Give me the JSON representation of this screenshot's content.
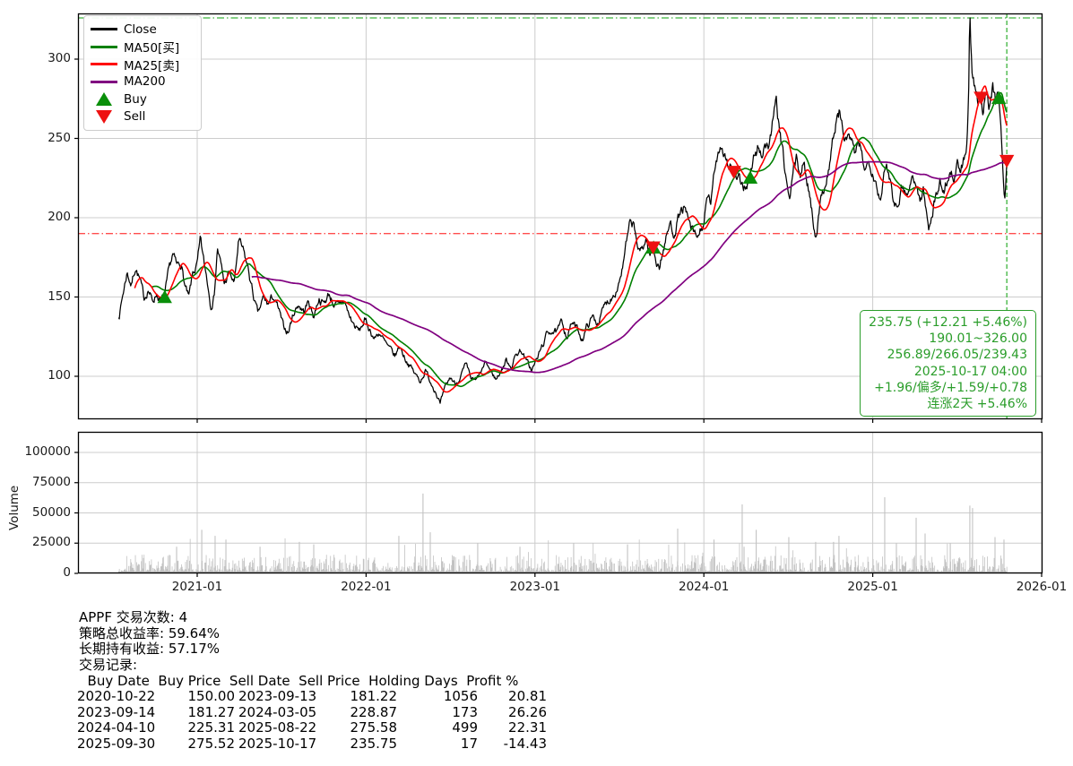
{
  "chart": {
    "legend": {
      "items": [
        {
          "label": "Close",
          "color": "#000000",
          "type": "line"
        },
        {
          "label": "MA50[买]",
          "color": "#008000",
          "type": "line"
        },
        {
          "label": "MA25[卖]",
          "color": "#ff0000",
          "type": "line"
        },
        {
          "label": "MA200",
          "color": "#800080",
          "type": "line"
        },
        {
          "label": "Buy",
          "color": "#0a8f0a",
          "type": "tri-up"
        },
        {
          "label": "Sell",
          "color": "#ee1111",
          "type": "tri-down"
        }
      ]
    },
    "y_ticks": [
      100,
      150,
      200,
      250,
      300
    ],
    "x_ticks": [
      "2021-01",
      "2022-01",
      "2023-01",
      "2024-01",
      "2025-01",
      "2026-01"
    ],
    "volume_y_ticks": [
      0,
      25000,
      50000,
      75000,
      100000
    ],
    "volume_axis_label": "Volume",
    "annotation": {
      "color": "#2a9d2a",
      "lines": [
        "235.75 (+12.21 +5.46%)",
        "190.01~326.00",
        "256.89/266.05/239.43",
        "2025-10-17 04:00",
        "+1.96/偏多/+1.59/+0.78",
        "连涨2天 +5.46%"
      ]
    }
  },
  "chart_data": {
    "type": "line",
    "title": "",
    "xlabel": "",
    "ylabel": "",
    "x_range": [
      "2020-07-14",
      "2025-10-17"
    ],
    "ylim": [
      73,
      329
    ],
    "volume_ylim": [
      0,
      117000
    ],
    "grid": true,
    "legend_position": "upper-left",
    "ref_lines": {
      "high": {
        "value": 326.0,
        "style": "dashdot",
        "color": "#3cb43c"
      },
      "low": {
        "value": 190.01,
        "style": "dashdot",
        "color": "#ff4d4d"
      },
      "last_date": {
        "value": "2025-10-17",
        "style": "dashed",
        "color": "#3cb43c"
      }
    },
    "series": [
      {
        "name": "Close",
        "color": "#000000",
        "width": 1.25
      },
      {
        "name": "MA50[买]",
        "color": "#008000",
        "width": 1.6,
        "window": 50
      },
      {
        "name": "MA25[卖]",
        "color": "#ff0000",
        "width": 1.6,
        "window": 25
      },
      {
        "name": "MA200",
        "color": "#800080",
        "width": 1.7,
        "window": 200
      }
    ],
    "close_anchors": [
      [
        2020.535,
        137
      ],
      [
        2020.56,
        152
      ],
      [
        2020.585,
        166
      ],
      [
        2020.61,
        158
      ],
      [
        2020.635,
        170
      ],
      [
        2020.66,
        161
      ],
      [
        2020.685,
        148
      ],
      [
        2020.71,
        156
      ],
      [
        2020.735,
        147
      ],
      [
        2020.76,
        153
      ],
      [
        2020.785,
        147
      ],
      [
        2020.808,
        150
      ],
      [
        2020.83,
        163
      ],
      [
        2020.855,
        176
      ],
      [
        2020.88,
        168
      ],
      [
        2020.905,
        172
      ],
      [
        2020.925,
        158
      ],
      [
        2020.95,
        148
      ],
      [
        2020.975,
        164
      ],
      [
        2021.0,
        170
      ],
      [
        2021.02,
        184
      ],
      [
        2021.04,
        170
      ],
      [
        2021.06,
        160
      ],
      [
        2021.08,
        146
      ],
      [
        2021.1,
        152
      ],
      [
        2021.12,
        182
      ],
      [
        2021.14,
        170
      ],
      [
        2021.16,
        158
      ],
      [
        2021.19,
        165
      ],
      [
        2021.22,
        158
      ],
      [
        2021.245,
        185
      ],
      [
        2021.27,
        178
      ],
      [
        2021.3,
        168
      ],
      [
        2021.33,
        152
      ],
      [
        2021.36,
        138
      ],
      [
        2021.39,
        148
      ],
      [
        2021.42,
        145
      ],
      [
        2021.45,
        150
      ],
      [
        2021.48,
        142
      ],
      [
        2021.51,
        130
      ],
      [
        2021.54,
        128
      ],
      [
        2021.57,
        140
      ],
      [
        2021.6,
        146
      ],
      [
        2021.63,
        141
      ],
      [
        2021.66,
        147
      ],
      [
        2021.69,
        138
      ],
      [
        2021.72,
        150
      ],
      [
        2021.75,
        146
      ],
      [
        2021.78,
        152
      ],
      [
        2021.81,
        146
      ],
      [
        2021.84,
        143
      ],
      [
        2021.87,
        148
      ],
      [
        2021.9,
        138
      ],
      [
        2021.93,
        132
      ],
      [
        2021.96,
        128
      ],
      [
        2021.99,
        135
      ],
      [
        2022.02,
        130
      ],
      [
        2022.05,
        124
      ],
      [
        2022.08,
        128
      ],
      [
        2022.11,
        121
      ],
      [
        2022.14,
        116
      ],
      [
        2022.17,
        112
      ],
      [
        2022.2,
        119
      ],
      [
        2022.23,
        112
      ],
      [
        2022.26,
        107
      ],
      [
        2022.29,
        101
      ],
      [
        2022.32,
        97
      ],
      [
        2022.35,
        104
      ],
      [
        2022.38,
        97
      ],
      [
        2022.41,
        92
      ],
      [
        2022.44,
        83
      ],
      [
        2022.47,
        92
      ],
      [
        2022.5,
        99
      ],
      [
        2022.53,
        95
      ],
      [
        2022.56,
        101
      ],
      [
        2022.59,
        106
      ],
      [
        2022.62,
        98
      ],
      [
        2022.65,
        96
      ],
      [
        2022.68,
        102
      ],
      [
        2022.71,
        108
      ],
      [
        2022.74,
        103
      ],
      [
        2022.77,
        98
      ],
      [
        2022.8,
        104
      ],
      [
        2022.83,
        110
      ],
      [
        2022.86,
        107
      ],
      [
        2022.89,
        114
      ],
      [
        2022.92,
        117
      ],
      [
        2022.95,
        109
      ],
      [
        2022.98,
        104
      ],
      [
        2023.01,
        110
      ],
      [
        2023.04,
        118
      ],
      [
        2023.07,
        126
      ],
      [
        2023.1,
        130
      ],
      [
        2023.13,
        127
      ],
      [
        2023.16,
        133
      ],
      [
        2023.19,
        126
      ],
      [
        2023.22,
        134
      ],
      [
        2023.25,
        129
      ],
      [
        2023.28,
        124
      ],
      [
        2023.31,
        132
      ],
      [
        2023.34,
        137
      ],
      [
        2023.37,
        134
      ],
      [
        2023.4,
        141
      ],
      [
        2023.43,
        147
      ],
      [
        2023.46,
        152
      ],
      [
        2023.49,
        158
      ],
      [
        2023.52,
        170
      ],
      [
        2023.54,
        182
      ],
      [
        2023.56,
        193
      ],
      [
        2023.58,
        195
      ],
      [
        2023.6,
        186
      ],
      [
        2023.62,
        176
      ],
      [
        2023.64,
        182
      ],
      [
        2023.66,
        187
      ],
      [
        2023.68,
        176
      ],
      [
        2023.7,
        181.2
      ],
      [
        2023.72,
        173
      ],
      [
        2023.74,
        170
      ],
      [
        2023.76,
        180
      ],
      [
        2023.78,
        188
      ],
      [
        2023.8,
        196
      ],
      [
        2023.82,
        191
      ],
      [
        2023.84,
        198
      ],
      [
        2023.86,
        203
      ],
      [
        2023.88,
        206
      ],
      [
        2023.9,
        199
      ],
      [
        2023.92,
        193
      ],
      [
        2023.94,
        188
      ],
      [
        2023.96,
        186
      ],
      [
        2023.98,
        191
      ],
      [
        2024.0,
        197
      ],
      [
        2024.02,
        210
      ],
      [
        2024.04,
        208
      ],
      [
        2024.06,
        224
      ],
      [
        2024.08,
        240
      ],
      [
        2024.1,
        248
      ],
      [
        2024.12,
        243
      ],
      [
        2024.14,
        236
      ],
      [
        2024.16,
        232
      ],
      [
        2024.175,
        228.87
      ],
      [
        2024.2,
        222
      ],
      [
        2024.23,
        218
      ],
      [
        2024.26,
        223
      ],
      [
        2024.273,
        225.31
      ],
      [
        2024.3,
        238
      ],
      [
        2024.32,
        244
      ],
      [
        2024.34,
        240
      ],
      [
        2024.36,
        248
      ],
      [
        2024.38,
        244
      ],
      [
        2024.4,
        256
      ],
      [
        2024.42,
        266
      ],
      [
        2024.43,
        270
      ],
      [
        2024.45,
        252
      ],
      [
        2024.47,
        236
      ],
      [
        2024.49,
        222
      ],
      [
        2024.51,
        208
      ],
      [
        2024.53,
        230
      ],
      [
        2024.55,
        236
      ],
      [
        2024.57,
        228
      ],
      [
        2024.59,
        233
      ],
      [
        2024.61,
        224
      ],
      [
        2024.63,
        214
      ],
      [
        2024.65,
        196
      ],
      [
        2024.66,
        190
      ],
      [
        2024.68,
        203
      ],
      [
        2024.7,
        214
      ],
      [
        2024.72,
        224
      ],
      [
        2024.74,
        232
      ],
      [
        2024.76,
        247
      ],
      [
        2024.78,
        258
      ],
      [
        2024.8,
        266
      ],
      [
        2024.82,
        256
      ],
      [
        2024.84,
        247
      ],
      [
        2024.86,
        253
      ],
      [
        2024.88,
        244
      ],
      [
        2024.9,
        238
      ],
      [
        2024.92,
        243
      ],
      [
        2024.94,
        236
      ],
      [
        2024.96,
        231
      ],
      [
        2024.98,
        236
      ],
      [
        2025.0,
        233
      ],
      [
        2025.02,
        225
      ],
      [
        2025.04,
        214
      ],
      [
        2025.06,
        222
      ],
      [
        2025.08,
        231
      ],
      [
        2025.1,
        226
      ],
      [
        2025.12,
        215
      ],
      [
        2025.14,
        209
      ],
      [
        2025.16,
        217
      ],
      [
        2025.18,
        223
      ],
      [
        2025.2,
        215
      ],
      [
        2025.22,
        221
      ],
      [
        2025.24,
        227
      ],
      [
        2025.26,
        219
      ],
      [
        2025.28,
        211
      ],
      [
        2025.3,
        217
      ],
      [
        2025.315,
        205
      ],
      [
        2025.33,
        193
      ],
      [
        2025.345,
        201
      ],
      [
        2025.36,
        209
      ],
      [
        2025.38,
        216
      ],
      [
        2025.4,
        222
      ],
      [
        2025.42,
        217
      ],
      [
        2025.44,
        225
      ],
      [
        2025.46,
        230
      ],
      [
        2025.48,
        226
      ],
      [
        2025.5,
        232
      ],
      [
        2025.52,
        228
      ],
      [
        2025.535,
        234
      ],
      [
        2025.55,
        242
      ],
      [
        2025.56,
        252
      ],
      [
        2025.568,
        278
      ],
      [
        2025.575,
        326
      ],
      [
        2025.582,
        306
      ],
      [
        2025.59,
        286
      ],
      [
        2025.6,
        280
      ],
      [
        2025.61,
        275
      ],
      [
        2025.62,
        269
      ],
      [
        2025.63,
        273
      ],
      [
        2025.64,
        275.58
      ],
      [
        2025.65,
        269
      ],
      [
        2025.66,
        276
      ],
      [
        2025.67,
        283
      ],
      [
        2025.68,
        277
      ],
      [
        2025.69,
        271
      ],
      [
        2025.7,
        277
      ],
      [
        2025.71,
        282
      ],
      [
        2025.72,
        277
      ],
      [
        2025.73,
        271
      ],
      [
        2025.74,
        278
      ],
      [
        2025.748,
        275.52
      ],
      [
        2025.756,
        266
      ],
      [
        2025.763,
        250
      ],
      [
        2025.77,
        232
      ],
      [
        2025.777,
        216
      ],
      [
        2025.783,
        212
      ],
      [
        2025.789,
        223.5
      ],
      [
        2025.794,
        235.75
      ]
    ],
    "extremes": [
      [
        2022.44,
        83
      ],
      [
        2025.575,
        326
      ]
    ],
    "volume": {
      "color": "#c2c2c2",
      "spikes": [
        [
          2020.878,
          22000
        ],
        [
          2021.027,
          36000
        ],
        [
          2021.106,
          31000
        ],
        [
          2021.17,
          28000
        ],
        [
          2021.372,
          22000
        ],
        [
          2021.605,
          26000
        ],
        [
          2021.69,
          24000
        ],
        [
          2022.194,
          31000
        ],
        [
          2022.337,
          66000
        ],
        [
          2022.38,
          34000
        ],
        [
          2022.661,
          25000
        ],
        [
          2022.911,
          22000
        ],
        [
          2023.229,
          25000
        ],
        [
          2023.548,
          24000
        ],
        [
          2023.845,
          37000
        ],
        [
          2024.06,
          28000
        ],
        [
          2024.227,
          57000
        ],
        [
          2024.238,
          22000
        ],
        [
          2024.31,
          36000
        ],
        [
          2024.503,
          30000
        ],
        [
          2024.662,
          26000
        ],
        [
          2024.768,
          26000
        ],
        [
          2024.8,
          31000
        ],
        [
          2025.071,
          63000
        ],
        [
          2025.14,
          25000
        ],
        [
          2025.257,
          46000
        ],
        [
          2025.31,
          33000
        ],
        [
          2025.459,
          25000
        ],
        [
          2025.575,
          56000
        ],
        [
          2025.591,
          54000
        ],
        [
          2025.724,
          30000
        ],
        [
          2025.777,
          28000
        ]
      ]
    }
  },
  "stats": {
    "lines": [
      "APPF 交易次数: 4",
      "策略总收益率: 59.64%",
      "长期持有收益: 57.17%",
      "交易记录:"
    ],
    "table": {
      "header": "  Buy Date  Buy Price  Sell Date  Sell Price  Holding Days  Profit %",
      "rows": [
        [
          "2020-10-22",
          "150.00",
          "2023-09-13",
          "181.22",
          "1056",
          "20.81"
        ],
        [
          "2023-09-14",
          "181.27",
          "2024-03-05",
          "228.87",
          "173",
          "26.26"
        ],
        [
          "2024-04-10",
          "225.31",
          "2025-08-22",
          "275.58",
          "499",
          "22.31"
        ],
        [
          "2025-09-30",
          "275.52",
          "2025-10-17",
          "235.75",
          "17",
          "-14.43"
        ]
      ]
    }
  }
}
